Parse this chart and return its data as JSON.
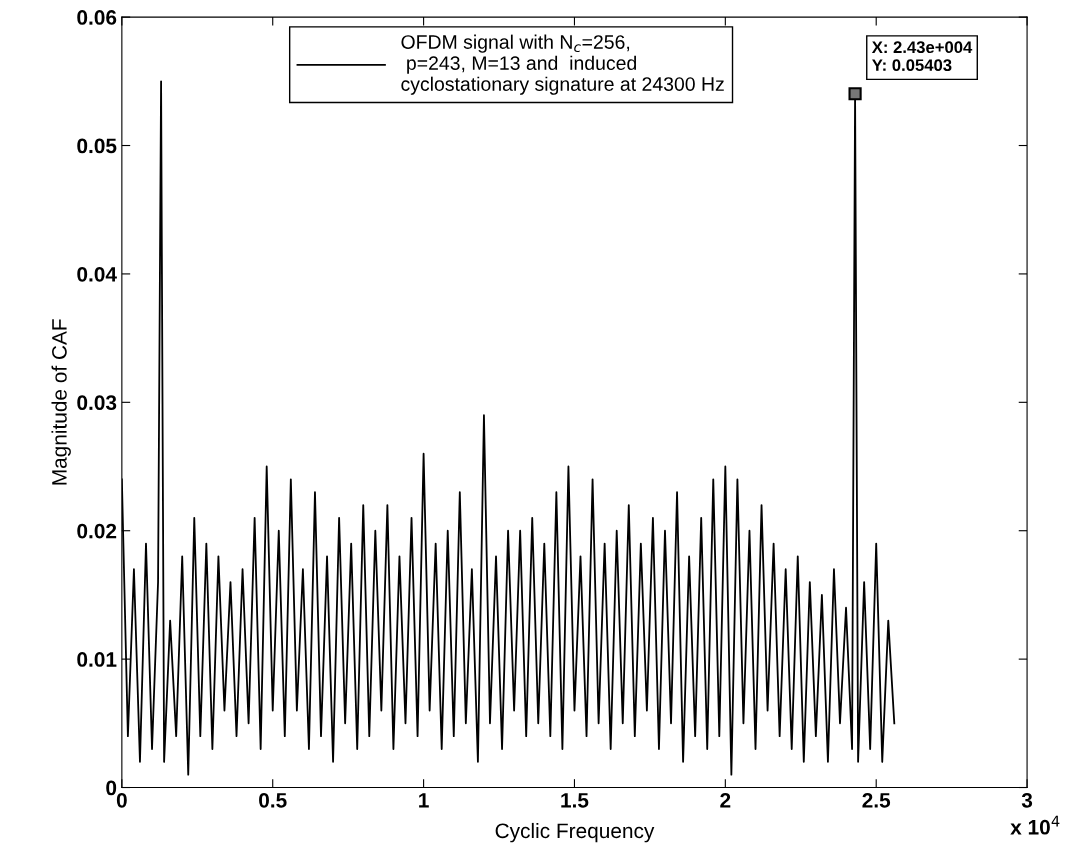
{
  "chart_data": {
    "type": "line",
    "xlabel": "Cyclic Frequency",
    "ylabel": "Magnitude of CAF",
    "xlim": [
      0,
      3
    ],
    "ylim": [
      0,
      0.06
    ],
    "xticks": [
      0,
      0.5,
      1,
      1.5,
      2,
      2.5,
      3
    ],
    "yticks": [
      0,
      0.01,
      0.02,
      0.03,
      0.04,
      0.05,
      0.06
    ],
    "grid": false,
    "legend": "top",
    "marker": "none",
    "line_style": "solid",
    "annotations": [
      {
        "text": "X: 2.43e+004\nY: 0.05403",
        "x": 2.43,
        "y": 0.05403
      },
      "x 10$^{4}$"
    ],
    "series": [
      {
        "name": "OFDM signal with N$_{c}$=256,\n p=243, M=13 and  induced\ncyclostationary signature at 24300 Hz",
        "color": "#000000",
        "x": [
          0,
          0.02,
          0.04,
          0.06,
          0.08,
          0.1,
          0.12,
          0.13,
          0.14,
          0.16,
          0.18,
          0.2,
          0.22,
          0.24,
          0.26,
          0.28,
          0.3,
          0.32,
          0.34,
          0.36,
          0.38,
          0.4,
          0.42,
          0.44,
          0.46,
          0.48,
          0.5,
          0.52,
          0.54,
          0.56,
          0.58,
          0.6,
          0.62,
          0.64,
          0.66,
          0.68,
          0.7,
          0.72,
          0.74,
          0.76,
          0.78,
          0.8,
          0.82,
          0.84,
          0.86,
          0.88,
          0.9,
          0.92,
          0.94,
          0.96,
          0.98,
          1.0,
          1.02,
          1.04,
          1.06,
          1.08,
          1.1,
          1.12,
          1.14,
          1.16,
          1.18,
          1.2,
          1.22,
          1.24,
          1.26,
          1.28,
          1.3,
          1.32,
          1.34,
          1.36,
          1.38,
          1.4,
          1.42,
          1.44,
          1.46,
          1.48,
          1.5,
          1.52,
          1.54,
          1.56,
          1.58,
          1.6,
          1.62,
          1.64,
          1.66,
          1.68,
          1.7,
          1.72,
          1.74,
          1.76,
          1.78,
          1.8,
          1.82,
          1.84,
          1.86,
          1.88,
          1.9,
          1.92,
          1.94,
          1.96,
          1.98,
          2.0,
          2.02,
          2.04,
          2.06,
          2.08,
          2.1,
          2.12,
          2.14,
          2.16,
          2.18,
          2.2,
          2.22,
          2.24,
          2.26,
          2.28,
          2.3,
          2.32,
          2.34,
          2.36,
          2.38,
          2.4,
          2.42,
          2.43,
          2.44,
          2.46,
          2.48,
          2.5,
          2.52,
          2.54,
          2.56
        ],
        "values": [
          0.024,
          0.004,
          0.017,
          0.002,
          0.019,
          0.003,
          0.016,
          0.055,
          0.002,
          0.013,
          0.004,
          0.018,
          0.001,
          0.021,
          0.004,
          0.019,
          0.003,
          0.018,
          0.006,
          0.016,
          0.004,
          0.017,
          0.005,
          0.021,
          0.003,
          0.025,
          0.006,
          0.02,
          0.004,
          0.024,
          0.006,
          0.017,
          0.003,
          0.023,
          0.004,
          0.018,
          0.002,
          0.021,
          0.005,
          0.019,
          0.003,
          0.022,
          0.004,
          0.02,
          0.006,
          0.022,
          0.003,
          0.018,
          0.005,
          0.021,
          0.004,
          0.026,
          0.006,
          0.019,
          0.003,
          0.02,
          0.004,
          0.023,
          0.005,
          0.017,
          0.002,
          0.029,
          0.005,
          0.018,
          0.003,
          0.02,
          0.006,
          0.02,
          0.004,
          0.021,
          0.005,
          0.019,
          0.004,
          0.023,
          0.003,
          0.025,
          0.006,
          0.018,
          0.004,
          0.024,
          0.005,
          0.019,
          0.003,
          0.02,
          0.005,
          0.022,
          0.004,
          0.019,
          0.006,
          0.021,
          0.003,
          0.02,
          0.005,
          0.023,
          0.002,
          0.018,
          0.004,
          0.021,
          0.003,
          0.024,
          0.004,
          0.025,
          0.001,
          0.024,
          0.005,
          0.02,
          0.003,
          0.022,
          0.006,
          0.019,
          0.004,
          0.017,
          0.003,
          0.018,
          0.002,
          0.016,
          0.004,
          0.015,
          0.002,
          0.017,
          0.005,
          0.014,
          0.003,
          0.05403,
          0.002,
          0.016,
          0.003,
          0.019,
          0.002,
          0.013,
          0.005
        ]
      }
    ]
  }
}
